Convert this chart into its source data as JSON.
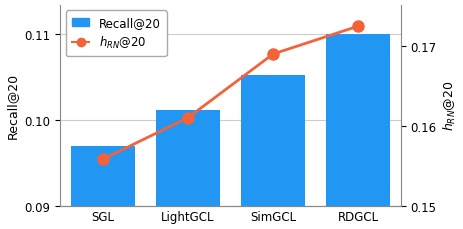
{
  "categories": [
    "SGL",
    "LightGCL",
    "SimGCL",
    "RDGCL"
  ],
  "bar_values": [
    0.097,
    0.1012,
    0.1053,
    0.11
  ],
  "line_values": [
    0.1558,
    0.161,
    0.169,
    0.1725
  ],
  "bar_color": "#2196F3",
  "line_color": "#F4623A",
  "ylabel_left": "Recall@20",
  "ylabel_right": "$h_{RN}$@20",
  "ylim_left": [
    0.09,
    0.1135
  ],
  "ylim_right": [
    0.15,
    0.1752
  ],
  "yticks_left": [
    0.09,
    0.1,
    0.11
  ],
  "yticks_right": [
    0.15,
    0.16,
    0.17
  ],
  "legend_bar": "Recall@20",
  "legend_line": "$h_{RN}$@20",
  "grid_color": "#cccccc",
  "background_color": "#ffffff"
}
